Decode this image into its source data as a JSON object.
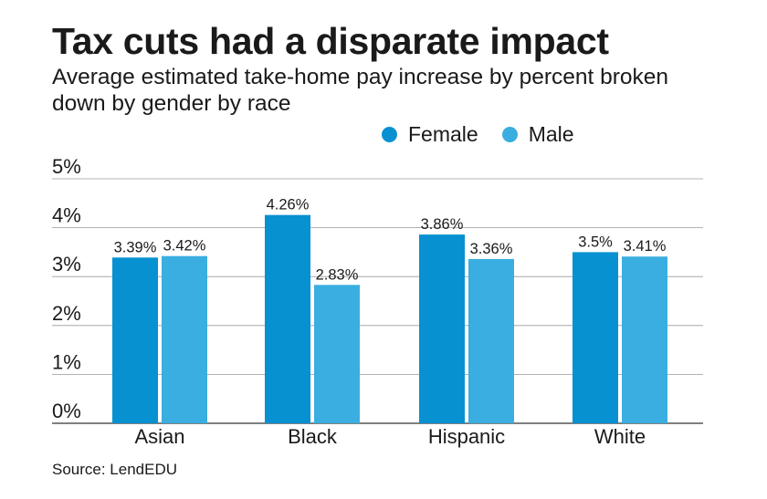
{
  "header": {
    "title": "Tax cuts had a disparate impact",
    "subtitle": "Average estimated take-home pay increase by percent broken down by gender by race"
  },
  "legend": {
    "items": [
      {
        "label": "Female",
        "color": "#0891d1"
      },
      {
        "label": "Male",
        "color": "#3aaee0"
      }
    ]
  },
  "footer": {
    "source": "Source: LendEDU"
  },
  "chart_data": {
    "type": "bar",
    "title": "Tax cuts had a disparate impact",
    "subtitle": "Average estimated take-home pay increase by percent broken down by gender by race",
    "xlabel": "",
    "ylabel": "",
    "categories": [
      "Asian",
      "Black",
      "Hispanic",
      "White"
    ],
    "series": [
      {
        "name": "Female",
        "color": "#0891d1",
        "values": [
          3.39,
          4.26,
          3.86,
          3.5
        ],
        "labels": [
          "3.39%",
          "4.26%",
          "3.86%",
          "3.5%"
        ]
      },
      {
        "name": "Male",
        "color": "#3aaee0",
        "values": [
          3.42,
          2.83,
          3.36,
          3.41
        ],
        "labels": [
          "3.42%",
          "2.83%",
          "3.36%",
          "3.41%"
        ]
      }
    ],
    "ylim": [
      0,
      5
    ],
    "yticks": [
      0,
      1,
      2,
      3,
      4,
      5
    ],
    "ytick_labels": [
      "0%",
      "1%",
      "2%",
      "3%",
      "4%",
      "5%"
    ],
    "grid": true,
    "legend_position": "top-right",
    "source": "Source: LendEDU"
  }
}
